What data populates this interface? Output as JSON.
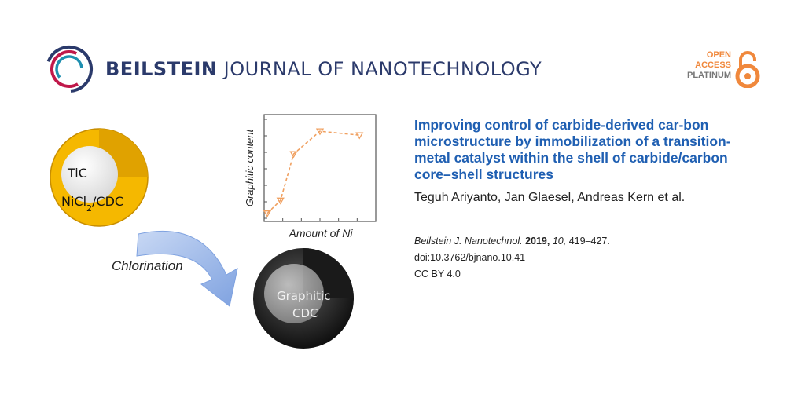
{
  "journal": {
    "name_strong": "BEILSTEIN",
    "name_rest": "JOURNAL OF NANOTECHNOLOGY"
  },
  "open_access": {
    "line1": "OPEN",
    "line2": "ACCESS",
    "line3": "PLATINUM"
  },
  "figure": {
    "core_label": "TiC",
    "shell_label_prefix": "NiCl",
    "shell_label_sub": "2",
    "shell_label_suffix": "/CDC",
    "arrow_label": "Chlorination",
    "result_label_line1": "Graphitic",
    "result_label_line2": "CDC",
    "plot_ylabel": "Graphitic content",
    "plot_xlabel": "Amount of Ni"
  },
  "chart_data": {
    "type": "line",
    "title": "",
    "xlabel": "Amount of Ni",
    "ylabel": "Graphitic content",
    "x": [
      0,
      1,
      2,
      4,
      7
    ],
    "values": [
      0.05,
      0.18,
      0.65,
      0.88,
      0.84
    ],
    "xlim": [
      0,
      8
    ],
    "ylim": [
      0,
      1
    ],
    "grid": false,
    "color": "#f0a060"
  },
  "article": {
    "title": "Improving control of carbide-derived car-bon microstructure by immobilization of a transition-metal catalyst within the shell of carbide/carbon core–shell structures",
    "authors": "Teguh Ariyanto, Jan Glaesel, Andreas Kern et al."
  },
  "citation": {
    "journal_abbrev": "Beilstein J. Nanotechnol.",
    "year": "2019,",
    "volume": "10,",
    "pages": "419–427.",
    "doi": "doi:10.3762/bjnano.10.41",
    "license": "CC BY 4.0"
  },
  "colors": {
    "title_blue": "#1f5fb2",
    "journal_navy": "#2b3a6b",
    "oa_orange": "#f0883c",
    "shell_gold": "#f5b800",
    "arrow_blue": "#8fb0e6"
  }
}
